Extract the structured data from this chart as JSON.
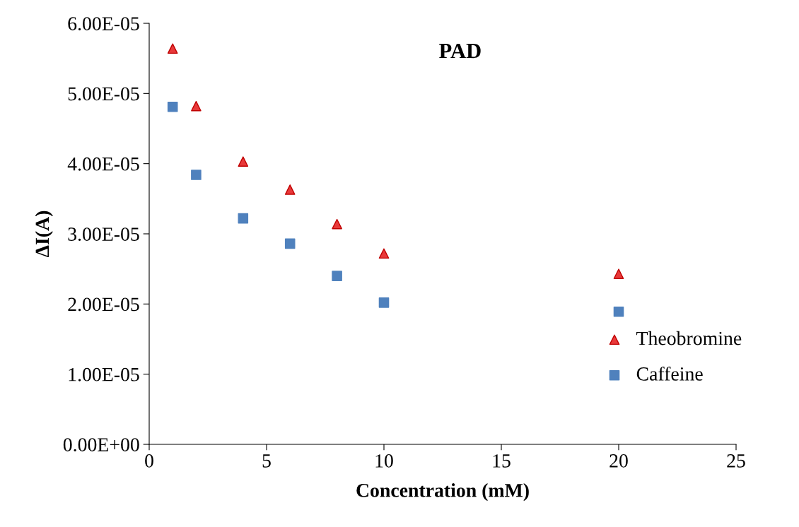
{
  "chart_data": {
    "type": "scatter",
    "title": "PAD",
    "xlabel": "Concentration (mM)",
    "ylabel": "ΔI(A)",
    "xlim": [
      0,
      25
    ],
    "xticks": [
      0,
      5,
      10,
      15,
      20,
      25
    ],
    "ylim": [
      0,
      6e-05
    ],
    "yticks": [
      {
        "value": 0,
        "label": "0.00E+00"
      },
      {
        "value": 1e-05,
        "label": "1.00E-05"
      },
      {
        "value": 2e-05,
        "label": "2.00E-05"
      },
      {
        "value": 3e-05,
        "label": "3.00E-05"
      },
      {
        "value": 4e-05,
        "label": "4.00E-05"
      },
      {
        "value": 5e-05,
        "label": "5.00E-05"
      },
      {
        "value": 6e-05,
        "label": "6.00E-05"
      }
    ],
    "grid": false,
    "legend": "bottom right",
    "series": [
      {
        "name": "Theobromine",
        "color": "#e8393a",
        "marker": "triangle",
        "x": [
          1,
          2,
          4,
          6,
          8,
          10,
          20
        ],
        "values": [
          5.64e-05,
          4.82e-05,
          4.03e-05,
          3.63e-05,
          3.14e-05,
          2.72e-05,
          2.43e-05
        ]
      },
      {
        "name": "Caffeine",
        "color": "#4f81bd",
        "marker": "square",
        "x": [
          1,
          2,
          4,
          6,
          8,
          10,
          20
        ],
        "values": [
          4.81e-05,
          3.84e-05,
          3.22e-05,
          2.86e-05,
          2.4e-05,
          2.02e-05,
          1.89e-05
        ]
      }
    ]
  }
}
